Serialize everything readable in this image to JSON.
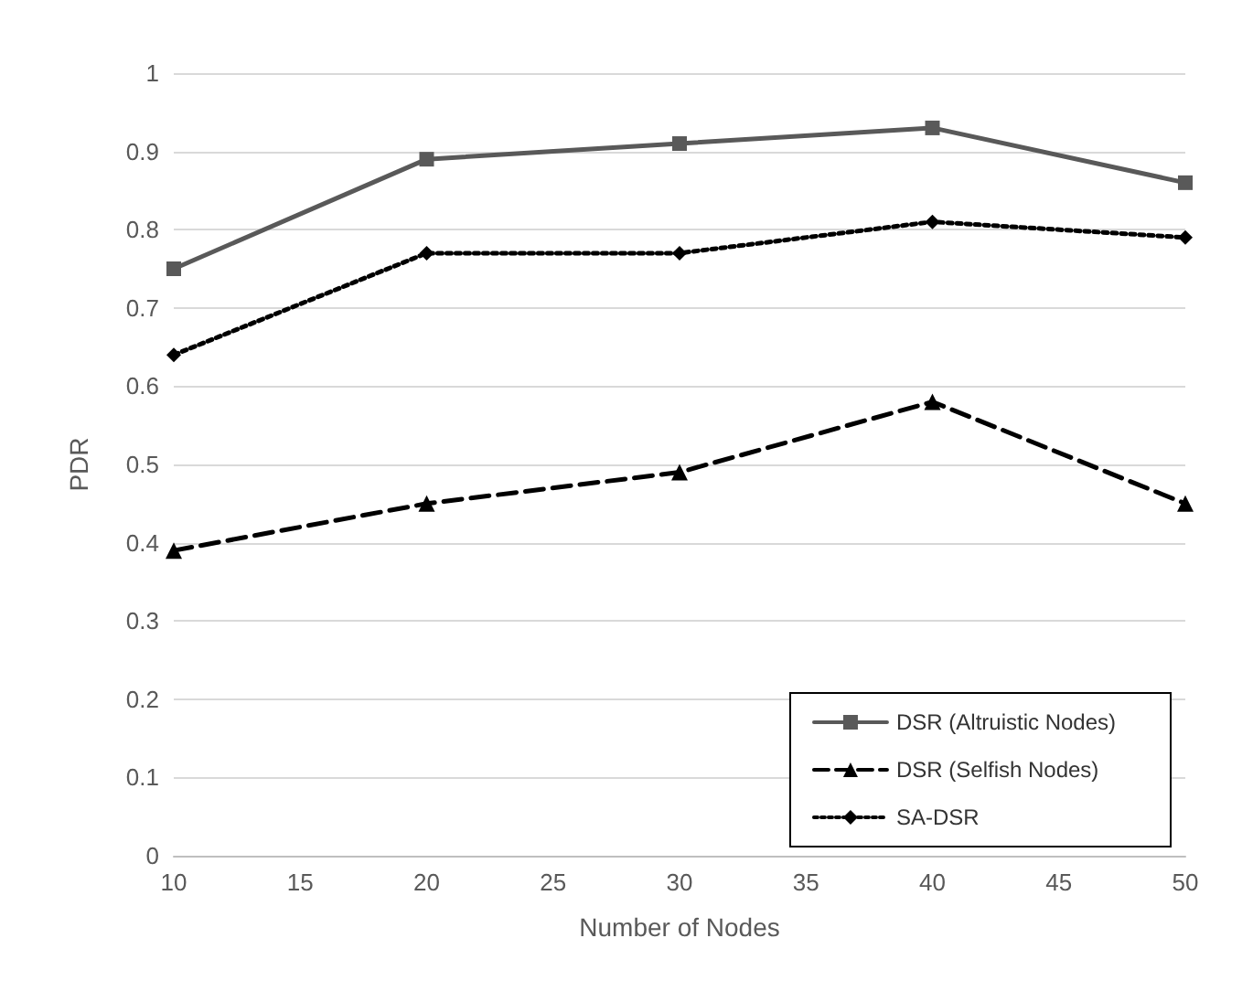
{
  "chart_data": {
    "type": "line",
    "xlabel": "Number of Nodes",
    "ylabel": "PDR",
    "x": [
      10,
      20,
      30,
      40,
      50
    ],
    "series": [
      {
        "name": "DSR (Altruistic Nodes)",
        "color": "#595959",
        "values": [
          0.75,
          0.89,
          0.91,
          0.93,
          0.86
        ],
        "marker": "square",
        "line_style": "solid"
      },
      {
        "name": "DSR (Selfish Nodes)",
        "color": "#000000",
        "values": [
          0.39,
          0.45,
          0.49,
          0.58,
          0.45
        ],
        "marker": "triangle",
        "line_style": "dashed"
      },
      {
        "name": "SA-DSR",
        "color": "#000000",
        "values": [
          0.64,
          0.77,
          0.77,
          0.81,
          0.79
        ],
        "marker": "diamond",
        "line_style": "dotted"
      }
    ],
    "xlim": [
      10,
      50
    ],
    "xticks": [
      10,
      15,
      20,
      25,
      30,
      35,
      40,
      45,
      50
    ],
    "ylim": [
      0,
      1
    ],
    "yticks": [
      0,
      0.1,
      0.2,
      0.3,
      0.4,
      0.5,
      0.6,
      0.7,
      0.8,
      0.9,
      1
    ],
    "grid": "y",
    "legend": "bottom right"
  }
}
